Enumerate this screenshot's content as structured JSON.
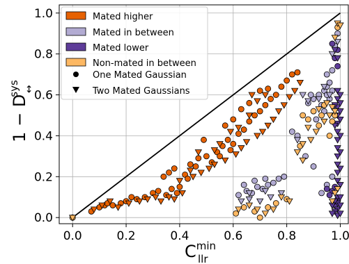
{
  "chart_data": {
    "type": "scatter",
    "xlabel": "C",
    "xlabel_sup": "min",
    "xlabel_sub": "llr",
    "ylabel": "1 − D",
    "ylabel_sup": "sys",
    "ylabel_sub": "↔",
    "xlim": [
      -0.05,
      1.03
    ],
    "ylim": [
      -0.03,
      1.04
    ],
    "xticks": [
      0.0,
      0.2,
      0.4,
      0.6,
      0.8,
      1.0
    ],
    "yticks": [
      0.0,
      0.2,
      0.4,
      0.6,
      0.8,
      1.0
    ],
    "xtick_labels": [
      "0.0",
      "0.2",
      "0.4",
      "0.6",
      "0.8",
      "1.0"
    ],
    "ytick_labels": [
      "0.0",
      "0.2",
      "0.4",
      "0.6",
      "0.8",
      "1.0"
    ],
    "grid": true,
    "diagonal": [
      [
        0,
        0
      ],
      [
        1,
        1
      ]
    ],
    "legend_position": "top-left",
    "legend": [
      {
        "label": "Mated higher",
        "kind": "patch",
        "color": "#e66101"
      },
      {
        "label": "Mated in between",
        "kind": "patch",
        "color": "#b2abd2"
      },
      {
        "label": "Mated lower",
        "kind": "patch",
        "color": "#5e3c99"
      },
      {
        "label": "Non-mated in between",
        "kind": "patch",
        "color": "#fdb863"
      },
      {
        "label": "One Mated Gaussian",
        "kind": "marker",
        "marker": "circle"
      },
      {
        "label": "Two Mated Gaussians",
        "kind": "marker",
        "marker": "triangle"
      }
    ],
    "series": [
      {
        "name": "Mated higher",
        "color": "#e66101",
        "marker": "circle",
        "points": [
          [
            0,
            0
          ],
          [
            0.07,
            0.03
          ],
          [
            0.1,
            0.05
          ],
          [
            0.12,
            0.06
          ],
          [
            0.13,
            0.07
          ],
          [
            0.15,
            0.06
          ],
          [
            0.18,
            0.07
          ],
          [
            0.2,
            0.08
          ],
          [
            0.22,
            0.1
          ],
          [
            0.24,
            0.09
          ],
          [
            0.27,
            0.1
          ],
          [
            0.3,
            0.12
          ],
          [
            0.32,
            0.13
          ],
          [
            0.35,
            0.11
          ],
          [
            0.37,
            0.14
          ],
          [
            0.39,
            0.12
          ],
          [
            0.4,
            0.15
          ],
          [
            0.34,
            0.2
          ],
          [
            0.36,
            0.22
          ],
          [
            0.38,
            0.24
          ],
          [
            0.42,
            0.21
          ],
          [
            0.44,
            0.26
          ],
          [
            0.46,
            0.25
          ],
          [
            0.47,
            0.29
          ],
          [
            0.5,
            0.3
          ],
          [
            0.52,
            0.27
          ],
          [
            0.54,
            0.32
          ],
          [
            0.56,
            0.35
          ],
          [
            0.58,
            0.38
          ],
          [
            0.6,
            0.36
          ],
          [
            0.62,
            0.41
          ],
          [
            0.64,
            0.43
          ],
          [
            0.66,
            0.47
          ],
          [
            0.68,
            0.5
          ],
          [
            0.7,
            0.52
          ],
          [
            0.72,
            0.55
          ],
          [
            0.74,
            0.58
          ],
          [
            0.76,
            0.6
          ],
          [
            0.78,
            0.64
          ],
          [
            0.8,
            0.67
          ],
          [
            0.82,
            0.7
          ],
          [
            0.84,
            0.71
          ],
          [
            0.57,
            0.45
          ],
          [
            0.6,
            0.48
          ],
          [
            0.63,
            0.53
          ],
          [
            0.66,
            0.56
          ],
          [
            0.7,
            0.62
          ],
          [
            0.73,
            0.63
          ],
          [
            0.55,
            0.3
          ],
          [
            0.59,
            0.33
          ],
          [
            0.49,
            0.38
          ],
          [
            0.43,
            0.19
          ]
        ]
      },
      {
        "name": "Mated higher",
        "color": "#e66101",
        "marker": "triangle",
        "points": [
          [
            0.08,
            0.04
          ],
          [
            0.11,
            0.06
          ],
          [
            0.14,
            0.08
          ],
          [
            0.17,
            0.05
          ],
          [
            0.21,
            0.07
          ],
          [
            0.25,
            0.08
          ],
          [
            0.28,
            0.09
          ],
          [
            0.31,
            0.1
          ],
          [
            0.33,
            0.08
          ],
          [
            0.36,
            0.1
          ],
          [
            0.38,
            0.09
          ],
          [
            0.41,
            0.12
          ],
          [
            0.45,
            0.2
          ],
          [
            0.48,
            0.22
          ],
          [
            0.51,
            0.24
          ],
          [
            0.53,
            0.26
          ],
          [
            0.57,
            0.28
          ],
          [
            0.61,
            0.31
          ],
          [
            0.63,
            0.34
          ],
          [
            0.65,
            0.37
          ],
          [
            0.69,
            0.4
          ],
          [
            0.71,
            0.42
          ],
          [
            0.73,
            0.45
          ],
          [
            0.75,
            0.48
          ],
          [
            0.77,
            0.52
          ],
          [
            0.79,
            0.55
          ],
          [
            0.81,
            0.59
          ],
          [
            0.83,
            0.62
          ],
          [
            0.85,
            0.66
          ],
          [
            0.67,
            0.6
          ],
          [
            0.69,
            0.57
          ],
          [
            0.72,
            0.6
          ],
          [
            0.53,
            0.33
          ],
          [
            0.55,
            0.36
          ],
          [
            0.59,
            0.42
          ],
          [
            0.62,
            0.44
          ],
          [
            0.66,
            0.5
          ],
          [
            0.47,
            0.32
          ],
          [
            0.4,
            0.18
          ],
          [
            0.44,
            0.23
          ]
        ]
      },
      {
        "name": "Mated in between",
        "color": "#b2abd2",
        "marker": "circle",
        "points": [
          [
            0.62,
            0.11
          ],
          [
            0.65,
            0.13
          ],
          [
            0.67,
            0.12
          ],
          [
            0.69,
            0.15
          ],
          [
            0.71,
            0.14
          ],
          [
            0.73,
            0.16
          ],
          [
            0.75,
            0.17
          ],
          [
            0.77,
            0.19
          ],
          [
            0.79,
            0.2
          ],
          [
            0.64,
            0.16
          ],
          [
            0.68,
            0.18
          ],
          [
            0.72,
            0.19
          ],
          [
            0.82,
            0.42
          ],
          [
            0.84,
            0.4
          ],
          [
            0.88,
            0.56
          ],
          [
            0.9,
            0.58
          ],
          [
            0.92,
            0.6
          ],
          [
            0.94,
            0.62
          ],
          [
            0.95,
            0.64
          ],
          [
            0.96,
            0.66
          ],
          [
            0.93,
            0.55
          ],
          [
            0.91,
            0.48
          ],
          [
            0.95,
            0.7
          ],
          [
            0.97,
            0.72
          ],
          [
            0.98,
            0.78
          ],
          [
            0.98,
            0.84
          ],
          [
            0.99,
            0.9
          ],
          [
            0.96,
            0.58
          ],
          [
            0.94,
            0.52
          ],
          [
            0.89,
            0.6
          ],
          [
            0.87,
            0.3
          ],
          [
            0.9,
            0.25
          ],
          [
            0.93,
            0.12
          ],
          [
            0.95,
            0.16
          ],
          [
            0.97,
            0.2
          ],
          [
            0.99,
            0.06
          ],
          [
            0.97,
            0.62
          ],
          [
            0.95,
            0.6
          ]
        ]
      },
      {
        "name": "Mated in between",
        "color": "#b2abd2",
        "marker": "triangle",
        "points": [
          [
            0.63,
            0.08
          ],
          [
            0.66,
            0.09
          ],
          [
            0.7,
            0.08
          ],
          [
            0.74,
            0.1
          ],
          [
            0.78,
            0.12
          ],
          [
            0.66,
            0.12
          ],
          [
            0.72,
            0.13
          ],
          [
            0.84,
            0.38
          ],
          [
            0.86,
            0.6
          ],
          [
            0.88,
            0.57
          ],
          [
            0.92,
            0.58
          ],
          [
            0.94,
            0.64
          ],
          [
            0.96,
            0.6
          ],
          [
            0.98,
            0.55
          ],
          [
            0.99,
            0.86
          ],
          [
            0.97,
            0.8
          ]
        ]
      },
      {
        "name": "Mated lower",
        "color": "#5e3c99",
        "marker": "circle",
        "points": [
          [
            0.97,
            0.13
          ],
          [
            0.98,
            0.15
          ],
          [
            0.99,
            0.09
          ],
          [
            0.96,
            0.11
          ],
          [
            0.98,
            0.78
          ],
          [
            0.99,
            0.82
          ],
          [
            0.97,
            0.85
          ],
          [
            0.99,
            0.74
          ],
          [
            0.98,
            0.06
          ],
          [
            0.95,
            0.14
          ]
        ]
      },
      {
        "name": "Mated lower",
        "color": "#5e3c99",
        "marker": "triangle",
        "points": [
          [
            0.99,
            0.01
          ],
          [
            0.99,
            0.04
          ],
          [
            0.99,
            0.07
          ],
          [
            0.99,
            0.1
          ],
          [
            0.99,
            0.14
          ],
          [
            0.99,
            0.18
          ],
          [
            0.99,
            0.22
          ],
          [
            0.99,
            0.26
          ],
          [
            0.99,
            0.3
          ],
          [
            0.99,
            0.34
          ],
          [
            0.99,
            0.38
          ],
          [
            0.99,
            0.42
          ],
          [
            0.99,
            0.46
          ],
          [
            0.99,
            0.5
          ],
          [
            0.99,
            0.54
          ],
          [
            0.99,
            0.58
          ],
          [
            0.99,
            0.62
          ],
          [
            1.0,
            0.02
          ],
          [
            1.0,
            0.06
          ],
          [
            1.0,
            0.1
          ],
          [
            1.0,
            0.16
          ],
          [
            1.0,
            0.24
          ],
          [
            1.0,
            0.32
          ],
          [
            1.0,
            0.4
          ],
          [
            1.0,
            0.48
          ],
          [
            1.0,
            0.52
          ],
          [
            1.0,
            0.56
          ],
          [
            1.0,
            0.6
          ],
          [
            0.98,
            0.03
          ],
          [
            0.98,
            0.08
          ],
          [
            0.98,
            0.45
          ],
          [
            0.98,
            0.5
          ],
          [
            0.98,
            0.55
          ],
          [
            0.97,
            0.02
          ],
          [
            0.97,
            0.06
          ],
          [
            0.99,
            0.78
          ],
          [
            0.98,
            0.82
          ]
        ]
      },
      {
        "name": "Non-mated in between",
        "color": "#fdb863",
        "marker": "circle",
        "points": [
          [
            0,
            0
          ],
          [
            0.61,
            0.02
          ],
          [
            0.64,
            0.05
          ],
          [
            0.68,
            0.03
          ],
          [
            0.7,
            0.0
          ],
          [
            0.73,
            0.05
          ],
          [
            0.76,
            0.07
          ],
          [
            0.8,
            0.09
          ],
          [
            0.85,
            0.35
          ],
          [
            0.86,
            0.5
          ],
          [
            0.88,
            0.48
          ],
          [
            0.9,
            0.52
          ],
          [
            0.92,
            0.45
          ],
          [
            0.93,
            0.5
          ],
          [
            0.94,
            0.55
          ],
          [
            0.96,
            0.4
          ],
          [
            0.97,
            0.47
          ],
          [
            0.98,
            0.5
          ],
          [
            0.99,
            0.93
          ]
        ]
      },
      {
        "name": "Non-mated in between",
        "color": "#fdb863",
        "marker": "triangle",
        "points": [
          [
            0,
            0
          ],
          [
            0.62,
            0.04
          ],
          [
            0.66,
            0.06
          ],
          [
            0.69,
            0.04
          ],
          [
            0.72,
            0.02
          ],
          [
            0.75,
            0.04
          ],
          [
            0.78,
            0.1
          ],
          [
            0.81,
            0.08
          ],
          [
            0.84,
            0.32
          ],
          [
            0.86,
            0.36
          ],
          [
            0.88,
            0.44
          ],
          [
            0.89,
            0.38
          ],
          [
            0.91,
            0.42
          ],
          [
            0.92,
            0.53
          ],
          [
            0.94,
            0.47
          ],
          [
            0.95,
            0.56
          ],
          [
            0.96,
            0.5
          ],
          [
            0.97,
            0.54
          ],
          [
            0.98,
            0.52
          ],
          [
            0.99,
            0.95
          ],
          [
            1.0,
            0.94
          ],
          [
            0.98,
            0.88
          ],
          [
            0.99,
            0.14
          ],
          [
            0.98,
            0.12
          ],
          [
            0.97,
            0.08
          ],
          [
            0.86,
            0.28
          ]
        ]
      }
    ]
  }
}
